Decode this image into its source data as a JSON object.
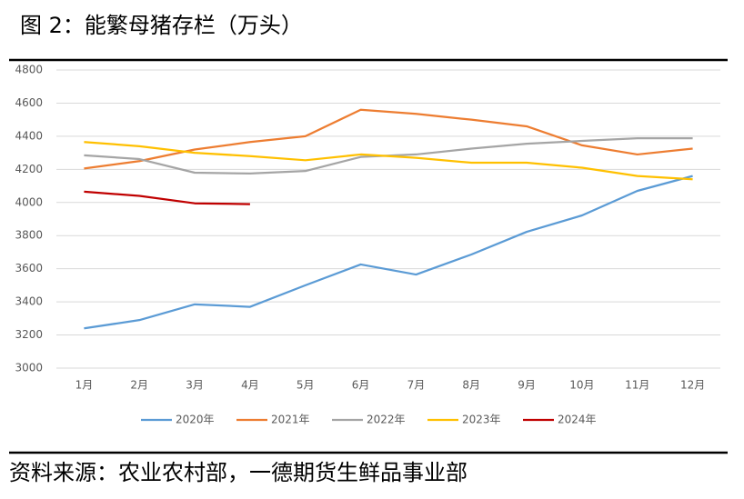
{
  "chart_data": {
    "type": "line",
    "title": "图 2：能繁母猪存栏（万头）",
    "source": "资料来源：农业农村部，一德期货生鲜品事业部",
    "categories": [
      "1月",
      "2月",
      "3月",
      "4月",
      "5月",
      "6月",
      "7月",
      "8月",
      "9月",
      "10月",
      "11月",
      "12月"
    ],
    "series": [
      {
        "name": "2020年",
        "color": "#5b9bd5",
        "values": [
          3240,
          3290,
          3385,
          3370,
          3500,
          3626,
          3565,
          3686,
          3823,
          3922,
          4070,
          4160
        ]
      },
      {
        "name": "2021年",
        "color": "#ed7d31",
        "values": [
          4205,
          4250,
          4320,
          4365,
          4400,
          4560,
          4535,
          4500,
          4460,
          4345,
          4290,
          4325
        ]
      },
      {
        "name": "2022年",
        "color": "#a5a5a5",
        "values": [
          4285,
          4262,
          4180,
          4175,
          4190,
          4275,
          4290,
          4325,
          4355,
          4372,
          4388,
          4388
        ]
      },
      {
        "name": "2023年",
        "color": "#ffc000",
        "values": [
          4365,
          4340,
          4300,
          4280,
          4255,
          4290,
          4270,
          4240,
          4240,
          4210,
          4160,
          4140
        ]
      },
      {
        "name": "2024年",
        "color": "#c00000",
        "values": [
          4065,
          4040,
          3995,
          3990,
          null,
          null,
          null,
          null,
          null,
          null,
          null,
          null
        ]
      }
    ],
    "ylim": [
      3000,
      4800
    ],
    "yticks": [
      3000,
      3200,
      3400,
      3600,
      3800,
      4000,
      4200,
      4400,
      4600,
      4800
    ],
    "grid": true,
    "legend": "bottom"
  }
}
